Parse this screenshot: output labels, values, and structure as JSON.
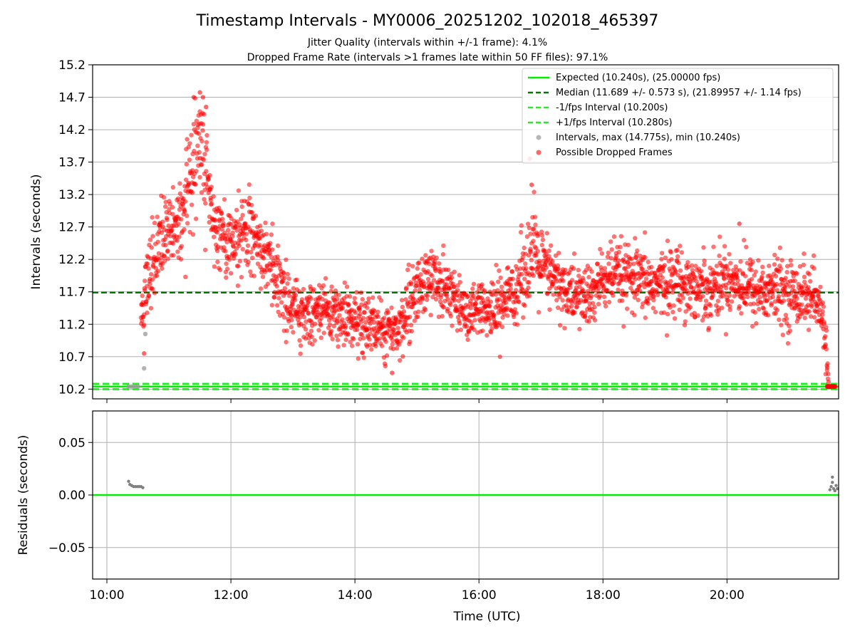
{
  "title": "Timestamp Intervals - MY0006_20251202_102018_465397",
  "subtitle_1": "Jitter Quality (intervals within +/-1 frame): 4.1%",
  "subtitle_2": "Dropped Frame Rate (intervals >1 frames late within 50 FF files): 97.1%",
  "colors": {
    "expected": "#00ee00",
    "median": "#007700",
    "fps_interval": "#22ee22",
    "intervals": "#999999",
    "dropped": "#ff0000",
    "residual_points": "#808080",
    "grid": "#b0b0b0"
  },
  "legend": {
    "expected": "Expected (10.240s), (25.00000 fps)",
    "median": "Median (11.689 +/- 0.573 s), (21.89957 +/- 1.14 fps)",
    "minus_fps": "-1/fps Interval (10.200s)",
    "plus_fps": "+1/fps Interval (10.280s)",
    "intervals": "Intervals, max (14.775s), min (10.240s)",
    "dropped": "Possible Dropped Frames"
  },
  "chart_data": [
    {
      "type": "scatter",
      "panel": "intervals",
      "ylabel": "Intervals (seconds)",
      "xlabel": "",
      "xlim_hours": [
        9.77,
        21.8
      ],
      "ylim": [
        10.05,
        15.2
      ],
      "y_ticks": [
        "10.2",
        "10.7",
        "11.2",
        "11.7",
        "12.2",
        "12.7",
        "13.2",
        "13.7",
        "14.2",
        "14.7",
        "15.2"
      ],
      "y_tick_values": [
        10.2,
        10.7,
        11.2,
        11.7,
        12.2,
        12.7,
        13.2,
        13.7,
        14.2,
        14.7,
        15.2
      ],
      "x_tick_values_hours": [
        10,
        12,
        14,
        16,
        18,
        20
      ],
      "expected_interval": 10.24,
      "median_interval": 11.689,
      "minus_fps_interval": 10.2,
      "plus_fps_interval": 10.28,
      "max_interval": 14.775,
      "min_interval": 10.24,
      "dropped_trend": {
        "x_hours": [
          10.55,
          10.6,
          10.7,
          10.8,
          10.9,
          11.0,
          11.1,
          11.2,
          11.3,
          11.4,
          11.5,
          11.55,
          11.6,
          11.7,
          11.8,
          12.0,
          12.2,
          12.4,
          12.6,
          12.8,
          13.0,
          13.2,
          13.5,
          13.8,
          14.0,
          14.2,
          14.4,
          14.6,
          14.8,
          15.0,
          15.2,
          15.4,
          15.6,
          15.8,
          16.0,
          16.2,
          16.4,
          16.6,
          16.7,
          16.8,
          16.9,
          17.0,
          17.2,
          17.4,
          17.6,
          17.8,
          18.0,
          18.2,
          18.4,
          18.6,
          18.8,
          19.0,
          19.2,
          19.4,
          19.6,
          19.8,
          20.0,
          20.2,
          20.4,
          20.6,
          20.8,
          21.0,
          21.2,
          21.4,
          21.5,
          21.58,
          21.62,
          21.64
        ],
        "y_values": [
          11.2,
          11.6,
          12.0,
          12.3,
          12.5,
          12.6,
          12.7,
          12.7,
          13.2,
          13.7,
          13.9,
          13.8,
          13.5,
          12.8,
          12.5,
          12.6,
          12.6,
          12.5,
          12.2,
          11.8,
          11.4,
          11.3,
          11.45,
          11.3,
          11.25,
          11.2,
          11.15,
          11.1,
          11.3,
          11.7,
          11.95,
          11.85,
          11.6,
          11.4,
          11.35,
          11.4,
          11.55,
          11.75,
          12.0,
          12.2,
          12.3,
          12.1,
          11.9,
          11.7,
          11.65,
          11.6,
          11.9,
          11.95,
          11.9,
          11.85,
          11.8,
          11.85,
          11.9,
          11.8,
          11.75,
          11.8,
          11.9,
          11.85,
          11.75,
          11.7,
          11.75,
          11.65,
          11.7,
          11.6,
          11.4,
          11.1,
          10.6,
          10.3
        ],
        "spread": [
          0.1,
          0.25,
          0.3,
          0.3,
          0.3,
          0.3,
          0.3,
          0.35,
          0.45,
          0.5,
          0.45,
          0.45,
          0.4,
          0.3,
          0.3,
          0.3,
          0.3,
          0.3,
          0.3,
          0.25,
          0.22,
          0.22,
          0.22,
          0.22,
          0.22,
          0.22,
          0.22,
          0.22,
          0.25,
          0.25,
          0.25,
          0.25,
          0.22,
          0.22,
          0.22,
          0.22,
          0.22,
          0.25,
          0.3,
          0.35,
          0.35,
          0.3,
          0.25,
          0.25,
          0.25,
          0.25,
          0.25,
          0.25,
          0.25,
          0.25,
          0.25,
          0.25,
          0.25,
          0.25,
          0.25,
          0.25,
          0.25,
          0.25,
          0.25,
          0.25,
          0.25,
          0.25,
          0.25,
          0.25,
          0.2,
          0.2,
          0.15,
          0.05
        ]
      },
      "dropped_outliers": [
        {
          "x_hours": 11.5,
          "y": 14.775
        },
        {
          "x_hours": 11.55,
          "y": 14.7
        },
        {
          "x_hours": 11.4,
          "y": 14.7
        },
        {
          "x_hours": 11.6,
          "y": 14.55
        },
        {
          "x_hours": 16.82,
          "y": 13.75
        },
        {
          "x_hours": 16.85,
          "y": 13.35
        },
        {
          "x_hours": 20.2,
          "y": 12.75
        },
        {
          "x_hours": 14.6,
          "y": 10.45
        },
        {
          "x_hours": 10.6,
          "y": 10.75
        }
      ],
      "dropped_cluster_end": {
        "x_hours": [
          21.62,
          21.75
        ],
        "y": 10.24
      },
      "interval_points": [
        {
          "x_hours": 10.35,
          "y": 10.24
        },
        {
          "x_hours": 10.4,
          "y": 10.24
        },
        {
          "x_hours": 10.45,
          "y": 10.24
        },
        {
          "x_hours": 10.5,
          "y": 10.24
        },
        {
          "x_hours": 10.6,
          "y": 10.52
        },
        {
          "x_hours": 10.62,
          "y": 11.05
        }
      ]
    },
    {
      "type": "scatter",
      "panel": "residuals",
      "ylabel": "Residuals (seconds)",
      "xlabel": "Time (UTC)",
      "xlim_hours": [
        9.77,
        21.8
      ],
      "ylim": [
        -0.08,
        0.08
      ],
      "y_ticks": [
        "−0.05",
        "0.00",
        "0.05"
      ],
      "y_tick_values": [
        -0.05,
        0.0,
        0.05
      ],
      "x_ticks": [
        "10:00",
        "12:00",
        "14:00",
        "16:00",
        "18:00",
        "20:00"
      ],
      "x_tick_values_hours": [
        10,
        12,
        14,
        16,
        18,
        20
      ],
      "zero_line": 0.0,
      "residual_points": [
        {
          "x_hours": 10.35,
          "y": 0.013
        },
        {
          "x_hours": 10.37,
          "y": 0.01
        },
        {
          "x_hours": 10.4,
          "y": 0.009
        },
        {
          "x_hours": 10.43,
          "y": 0.008
        },
        {
          "x_hours": 10.46,
          "y": 0.008
        },
        {
          "x_hours": 10.49,
          "y": 0.008
        },
        {
          "x_hours": 10.52,
          "y": 0.008
        },
        {
          "x_hours": 10.55,
          "y": 0.008
        },
        {
          "x_hours": 10.58,
          "y": 0.007
        },
        {
          "x_hours": 21.66,
          "y": 0.005
        },
        {
          "x_hours": 21.68,
          "y": 0.008
        },
        {
          "x_hours": 21.7,
          "y": 0.017
        },
        {
          "x_hours": 21.7,
          "y": 0.012
        },
        {
          "x_hours": 21.72,
          "y": 0.006
        },
        {
          "x_hours": 21.74,
          "y": 0.004
        },
        {
          "x_hours": 21.76,
          "y": 0.009
        },
        {
          "x_hours": 21.78,
          "y": 0.006
        }
      ]
    }
  ]
}
